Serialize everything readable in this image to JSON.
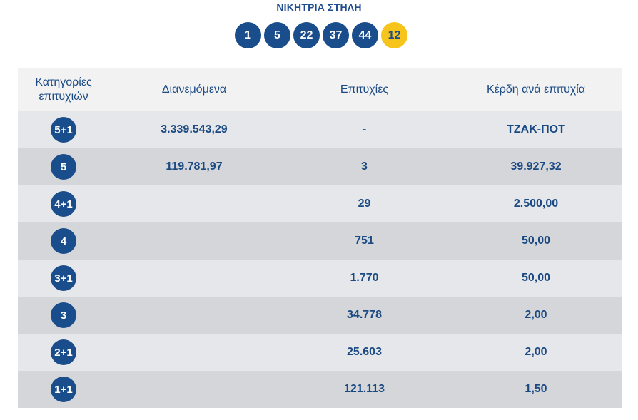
{
  "winning_column": {
    "title": "ΝΙΚΗΤΡΙΑ ΣΤΗΛΗ",
    "numbers": [
      "1",
      "5",
      "22",
      "37",
      "44"
    ],
    "joker": "12",
    "colors": {
      "ball": "#1a4d8c",
      "joker_ball": "#f7c41b"
    }
  },
  "table": {
    "headers": {
      "category": "Κατηγορίες επιτυχιών",
      "distributed": "Διανεμόμενα",
      "winners": "Επιτυχίες",
      "prize_per_winner": "Κέρδη ανά επιτυχία"
    },
    "rows": [
      {
        "category": "5+1",
        "distributed": "3.339.543,29",
        "winners": "-",
        "prize": "ΤΖΑΚ-ΠΟΤ"
      },
      {
        "category": "5",
        "distributed": "119.781,97",
        "winners": "3",
        "prize": "39.927,32"
      },
      {
        "category": "4+1",
        "distributed": "",
        "winners": "29",
        "prize": "2.500,00"
      },
      {
        "category": "4",
        "distributed": "",
        "winners": "751",
        "prize": "50,00"
      },
      {
        "category": "3+1",
        "distributed": "",
        "winners": "1.770",
        "prize": "50,00"
      },
      {
        "category": "3",
        "distributed": "",
        "winners": "34.778",
        "prize": "2,00"
      },
      {
        "category": "2+1",
        "distributed": "",
        "winners": "25.603",
        "prize": "2,00"
      },
      {
        "category": "1+1",
        "distributed": "",
        "winners": "121.113",
        "prize": "1,50"
      }
    ]
  }
}
